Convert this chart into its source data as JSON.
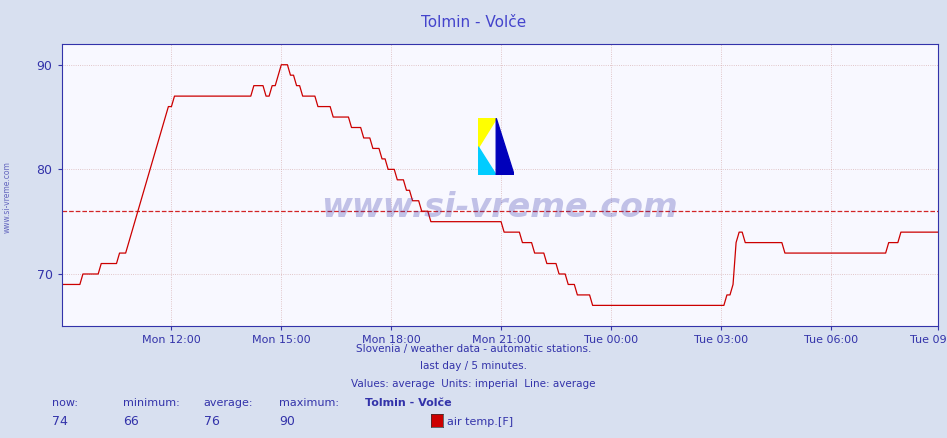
{
  "title": "Tolmin - Volče",
  "title_color": "#4444cc",
  "bg_color": "#d8e0f0",
  "plot_bg_color": "#f8f8ff",
  "line_color": "#cc0000",
  "avg_line_color": "#cc0000",
  "avg_value": 76,
  "ymin": 65,
  "ymax": 92,
  "yticks": [
    70,
    80,
    90
  ],
  "grid_color": "#cc9999",
  "axis_color": "#3333aa",
  "tick_color": "#3333aa",
  "stats_label_color": "#3333aa",
  "stats_value_color": "#3333aa",
  "now": 74,
  "minimum": 66,
  "average": 76,
  "maximum": 90,
  "station_name": "Tolmin - Volče",
  "legend_label": "air temp.[F]",
  "subtitle1": "Slovenia / weather data - automatic stations.",
  "subtitle2": "last day / 5 minutes.",
  "subtitle3": "Values: average  Units: imperial  Line: average",
  "subtitle_color": "#3333aa",
  "watermark": "www.si-vreme.com",
  "watermark_color": "#3333aa",
  "left_label": "www.si-vreme.com",
  "left_label_color": "#3333aa",
  "x_tick_labels": [
    "Mon 12:00",
    "Mon 15:00",
    "Mon 18:00",
    "Mon 21:00",
    "Tue 00:00",
    "Tue 03:00",
    "Tue 06:00",
    "Tue 09:00"
  ],
  "x_tick_positions": [
    36,
    72,
    108,
    144,
    180,
    216,
    252,
    287
  ],
  "total_points": 288,
  "temperature_data": [
    69,
    69,
    69,
    69,
    69,
    69,
    69,
    70,
    70,
    70,
    70,
    70,
    70,
    71,
    71,
    71,
    71,
    71,
    71,
    72,
    72,
    72,
    73,
    74,
    75,
    76,
    77,
    78,
    79,
    80,
    81,
    82,
    83,
    84,
    85,
    86,
    86,
    87,
    87,
    87,
    87,
    87,
    87,
    87,
    87,
    87,
    87,
    87,
    87,
    87,
    87,
    87,
    87,
    87,
    87,
    87,
    87,
    87,
    87,
    87,
    87,
    87,
    87,
    88,
    88,
    88,
    88,
    87,
    87,
    88,
    88,
    89,
    90,
    90,
    90,
    89,
    89,
    88,
    88,
    87,
    87,
    87,
    87,
    87,
    86,
    86,
    86,
    86,
    86,
    85,
    85,
    85,
    85,
    85,
    85,
    84,
    84,
    84,
    84,
    83,
    83,
    83,
    82,
    82,
    82,
    81,
    81,
    80,
    80,
    80,
    79,
    79,
    79,
    78,
    78,
    77,
    77,
    77,
    76,
    76,
    76,
    75,
    75,
    75,
    75,
    75,
    75,
    75,
    75,
    75,
    75,
    75,
    75,
    75,
    75,
    75,
    75,
    75,
    75,
    75,
    75,
    75,
    75,
    75,
    75,
    74,
    74,
    74,
    74,
    74,
    74,
    73,
    73,
    73,
    73,
    72,
    72,
    72,
    72,
    71,
    71,
    71,
    71,
    70,
    70,
    70,
    69,
    69,
    69,
    68,
    68,
    68,
    68,
    68,
    67,
    67,
    67,
    67,
    67,
    67,
    67,
    67,
    67,
    67,
    67,
    67,
    67,
    67,
    67,
    67,
    67,
    67,
    67,
    67,
    67,
    67,
    67,
    67,
    67,
    67,
    67,
    67,
    67,
    67,
    67,
    67,
    67,
    67,
    67,
    67,
    67,
    67,
    67,
    67,
    67,
    67,
    67,
    67,
    68,
    68,
    69,
    73,
    74,
    74,
    73,
    73,
    73,
    73,
    73,
    73,
    73,
    73,
    73,
    73,
    73,
    73,
    73,
    72,
    72,
    72,
    72,
    72,
    72,
    72,
    72,
    72,
    72,
    72,
    72,
    72,
    72,
    72,
    72,
    72,
    72,
    72,
    72,
    72,
    72,
    72,
    72,
    72,
    72,
    72,
    72,
    72,
    72,
    72,
    72,
    72,
    72,
    73,
    73,
    73,
    73,
    74,
    74,
    74,
    74,
    74,
    74,
    74,
    74,
    74,
    74,
    74,
    74,
    74
  ]
}
